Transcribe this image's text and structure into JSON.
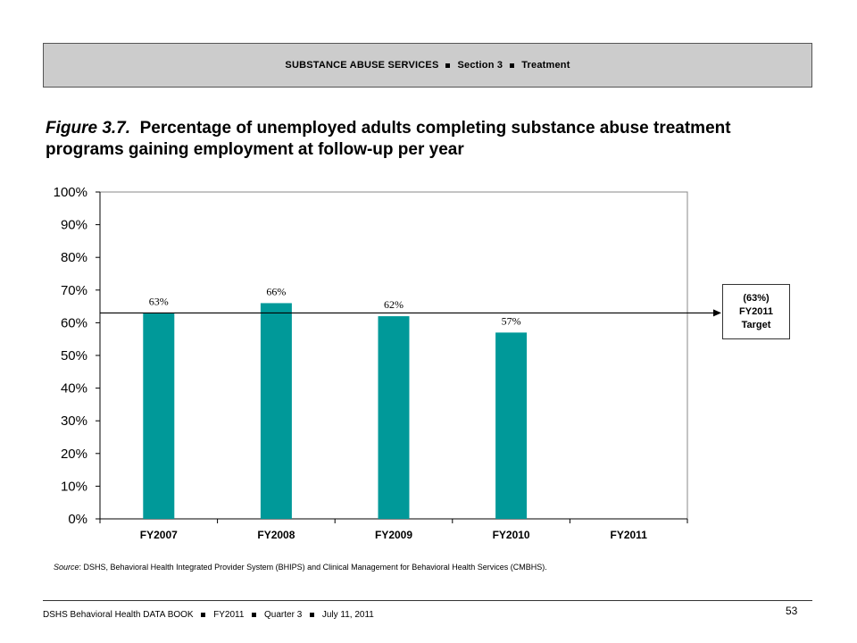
{
  "header": {
    "section_name": "SUBSTANCE ABUSE SERVICES",
    "section_number": "Section 3",
    "section_topic": "Treatment"
  },
  "figure": {
    "label": "Figure 3.7.",
    "title": "Percentage of unemployed adults completing substance abuse treatment programs gaining employment at follow-up per year"
  },
  "target_box": {
    "value": "(63%)",
    "year": "FY2011",
    "label": "Target"
  },
  "source": {
    "label": "Source",
    "text": ": DSHS, Behavioral Health Integrated Provider System (BHIPS) and Clinical Management for Behavioral Health Services (CMBHS)."
  },
  "footer": {
    "book": "DSHS Behavioral Health DATA BOOK",
    "fiscal_year": "FY2011",
    "quarter": "Quarter 3",
    "date": "July 11, 2011",
    "page_number": "53"
  },
  "colors": {
    "bar": "#009999",
    "axis": "#000000",
    "target_line": "#000000"
  },
  "chart_data": {
    "type": "bar",
    "title": "",
    "xlabel": "",
    "ylabel": "",
    "categories": [
      "FY2007",
      "FY2008",
      "FY2009",
      "FY2010",
      "FY2011"
    ],
    "values": [
      63,
      66,
      62,
      57,
      null
    ],
    "value_labels": [
      "63%",
      "66%",
      "62%",
      "57%",
      ""
    ],
    "ylim": [
      0,
      100
    ],
    "yticks": [
      0,
      10,
      20,
      30,
      40,
      50,
      60,
      70,
      80,
      90,
      100
    ],
    "ytick_labels": [
      "0%",
      "10%",
      "20%",
      "30%",
      "40%",
      "50%",
      "60%",
      "70%",
      "80%",
      "90%",
      "100%"
    ],
    "target_value": 63,
    "grid": false,
    "legend": "none"
  }
}
